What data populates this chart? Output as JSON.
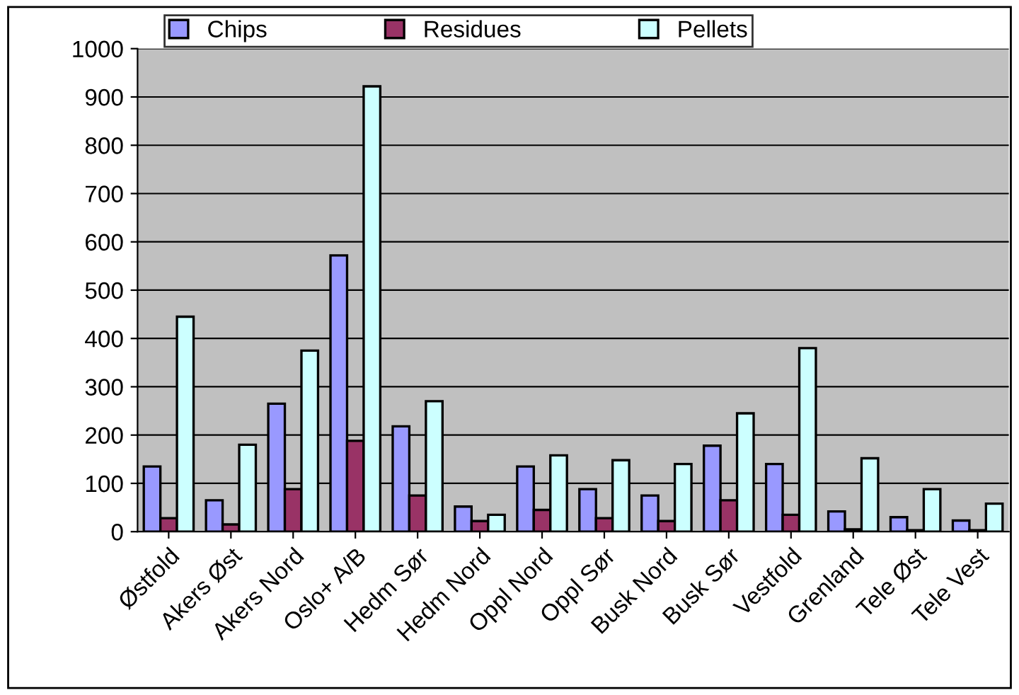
{
  "chart_data": {
    "type": "bar",
    "categories": [
      "Østfold",
      "Akers Øst",
      "Akers Nord",
      "Oslo+ A/B",
      "Hedm Sør",
      "Hedm Nord",
      "Oppl Nord",
      "Oppl Sør",
      "Busk Nord",
      "Busk Sør",
      "Vestfold",
      "Grenland",
      "Tele Øst",
      "Tele Vest"
    ],
    "series": [
      {
        "name": "Chips",
        "color": "#9999ff",
        "values": [
          135,
          65,
          265,
          572,
          218,
          52,
          135,
          88,
          75,
          178,
          140,
          42,
          30,
          23
        ]
      },
      {
        "name": "Residues",
        "color": "#993366",
        "values": [
          28,
          15,
          88,
          188,
          75,
          22,
          45,
          28,
          22,
          65,
          35,
          5,
          3,
          3
        ]
      },
      {
        "name": "Pellets",
        "color": "#ccffff",
        "values": [
          445,
          180,
          375,
          922,
          270,
          35,
          158,
          148,
          140,
          245,
          380,
          152,
          88,
          58
        ]
      }
    ],
    "ylim": [
      0,
      1000
    ],
    "yticks": [
      0,
      100,
      200,
      300,
      400,
      500,
      600,
      700,
      800,
      900,
      1000
    ],
    "grid": "y",
    "legend": "top"
  }
}
